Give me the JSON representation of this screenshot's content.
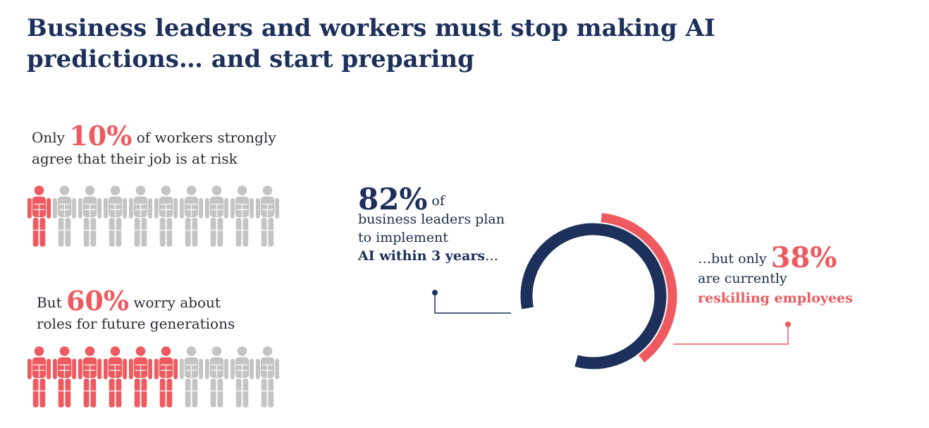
{
  "title": "Business leaders and workers must stop making AI predictions… and start preparing",
  "colors": {
    "navy": "#1c305b",
    "red": "#ee5a5f",
    "gray": "#c4c4c4"
  },
  "icons": {
    "person": "person-icon"
  },
  "stat_workers_risk": {
    "prefix": "Only",
    "value": "10%",
    "suffix": "of workers strongly",
    "line2": "agree that their job is at risk",
    "highlighted": 1,
    "total": 10
  },
  "stat_future_generations": {
    "prefix": "But",
    "value": "60%",
    "suffix": "worry  about",
    "line2": "roles for future generations",
    "highlighted": 6,
    "total": 10
  },
  "stat_leaders": {
    "value": "82%",
    "value_suffix": "of",
    "line1": "business leaders plan",
    "line2": "to implement",
    "bold_line": "AI within 3 years",
    "ellipsis": "…"
  },
  "stat_reskilling": {
    "prefix": "…but only",
    "value": "38%",
    "line1": "are currently",
    "bold_line": "reskilling employees"
  },
  "chart_data": {
    "type": "pie",
    "series": [
      {
        "name": "business leaders plan to implement AI within 3 years",
        "values": [
          82
        ]
      },
      {
        "name": "reskilling employees",
        "values": [
          38
        ]
      }
    ]
  }
}
